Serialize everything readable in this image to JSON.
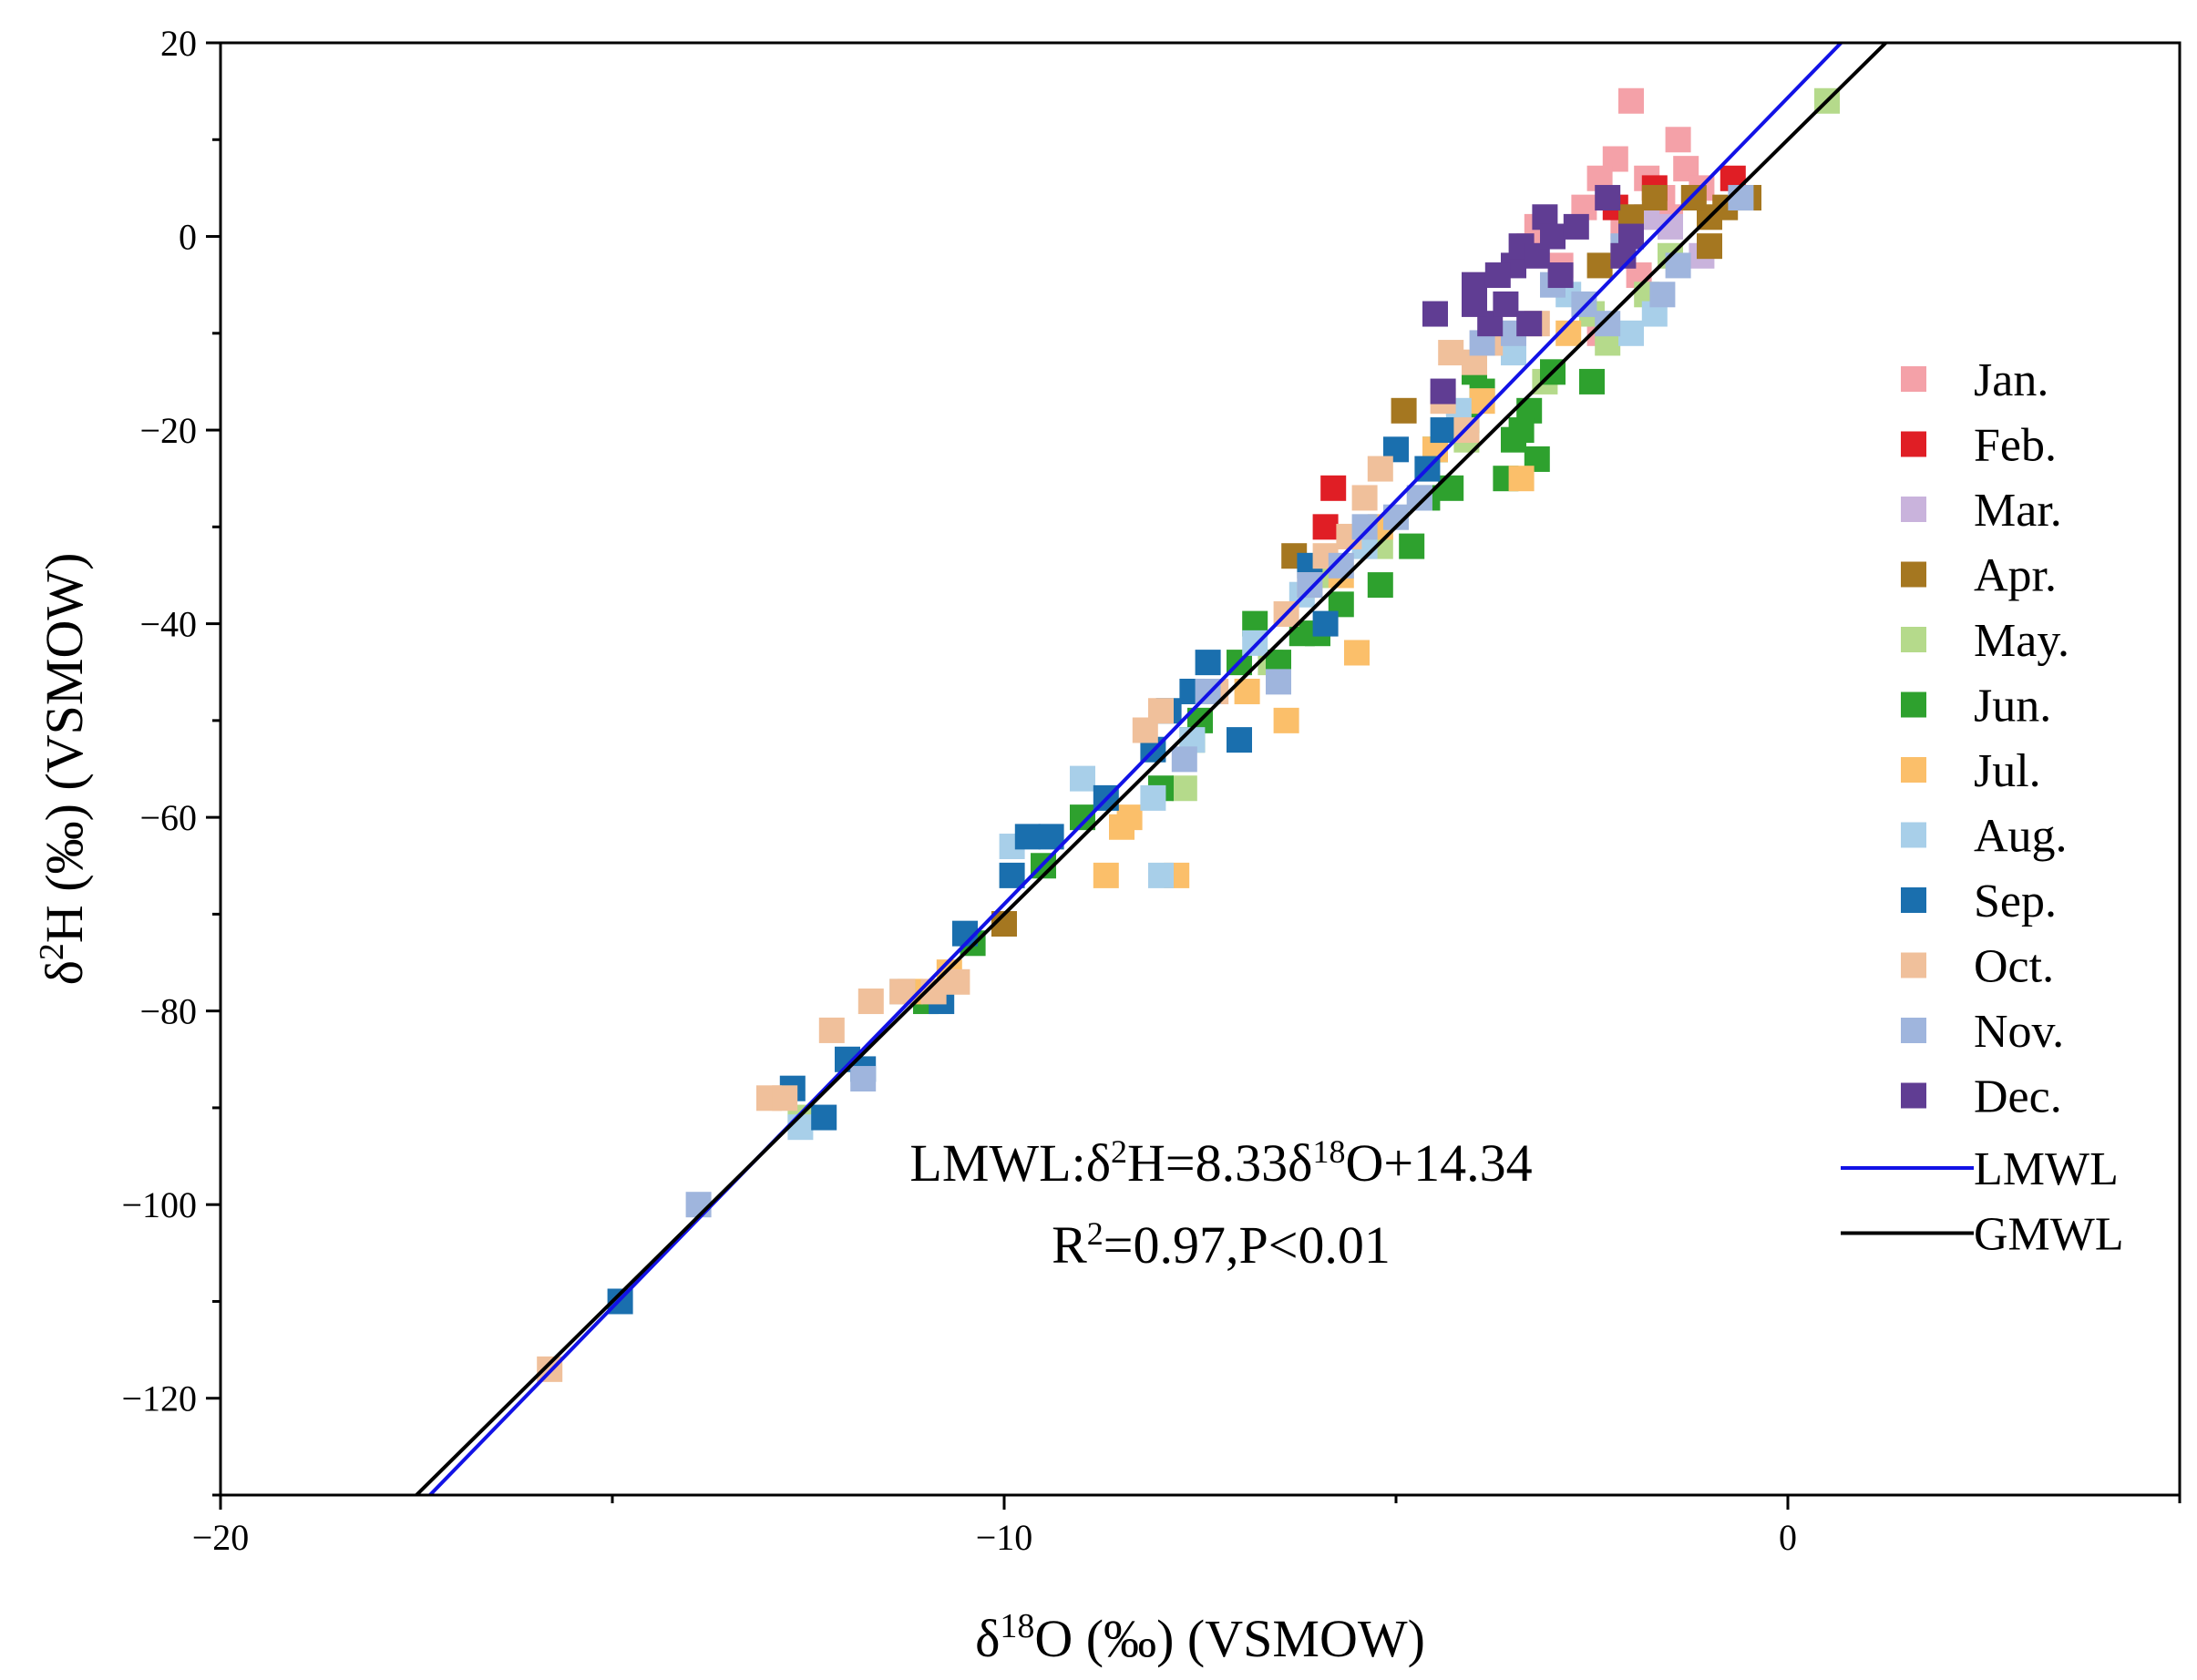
{
  "chart_data": {
    "type": "scatter",
    "title": "",
    "xlabel": {
      "prefix": "δ",
      "sup": "18",
      "rest": "O (‰) (VSMOW)"
    },
    "ylabel": {
      "prefix": "δ",
      "sup": "2",
      "rest": "H (‰) (VSMOW)"
    },
    "xlim": [
      -20,
      5
    ],
    "ylim": [
      -130,
      20
    ],
    "xticks": [
      -20,
      -10,
      0
    ],
    "xtick_labels": [
      "−20",
      "−10",
      "0"
    ],
    "yticks": [
      20,
      0,
      -20,
      -40,
      -60,
      -80,
      -100,
      -120
    ],
    "ytick_labels": [
      "20",
      "0",
      "−20",
      "−40",
      "−60",
      "−80",
      "−100",
      "−120"
    ],
    "grid": false,
    "legend_position": "right",
    "series": [
      {
        "name": "Jan.",
        "color": "#f4a1a8",
        "points": [
          [
            -2.0,
            14
          ],
          [
            -2.2,
            8
          ],
          [
            -1.4,
            10
          ],
          [
            -1.3,
            7
          ],
          [
            -1.8,
            6
          ],
          [
            -2.4,
            6
          ],
          [
            -1.6,
            4
          ],
          [
            -2.6,
            3
          ],
          [
            -1.1,
            5
          ],
          [
            -3.3,
            -1
          ],
          [
            -2.9,
            -3
          ],
          [
            -2.1,
            1
          ],
          [
            -1.5,
            2
          ],
          [
            -3.2,
            1
          ],
          [
            -2.4,
            -10
          ],
          [
            -1.9,
            -4
          ]
        ]
      },
      {
        "name": "Feb.",
        "color": "#e01e25",
        "points": [
          [
            -5.8,
            -26
          ],
          [
            -5.9,
            -30
          ],
          [
            -0.7,
            6
          ],
          [
            -2.2,
            3
          ],
          [
            -1.7,
            5
          ]
        ]
      },
      {
        "name": "Mar.",
        "color": "#c9b3dc",
        "points": [
          [
            -1.1,
            -2
          ],
          [
            -1.5,
            1
          ],
          [
            -2.0,
            0
          ],
          [
            -0.5,
            4
          ],
          [
            -3.6,
            -11
          ],
          [
            -1.8,
            2
          ]
        ]
      },
      {
        "name": "Apr.",
        "color": "#a57720",
        "points": [
          [
            -0.5,
            4
          ],
          [
            -0.8,
            3
          ],
          [
            -1.0,
            2
          ],
          [
            -1.2,
            4
          ],
          [
            -1.7,
            4
          ],
          [
            -1.0,
            -1
          ],
          [
            -2.0,
            2
          ],
          [
            -4.9,
            -18
          ],
          [
            -6.3,
            -33
          ],
          [
            -10.0,
            -71
          ],
          [
            -2.4,
            -3
          ]
        ]
      },
      {
        "name": "May.",
        "color": "#b5da8b",
        "points": [
          [
            0.5,
            14
          ],
          [
            -1.8,
            -6
          ],
          [
            -2.3,
            -11
          ],
          [
            -3.1,
            -15
          ],
          [
            -5.8,
            -35
          ],
          [
            -7.7,
            -57
          ],
          [
            -6.6,
            -44
          ],
          [
            -1.5,
            -2
          ],
          [
            -4.1,
            -21
          ],
          [
            -12.6,
            -91
          ],
          [
            -5.2,
            -32
          ],
          [
            -2.5,
            -8
          ]
        ]
      },
      {
        "name": "Jun.",
        "color": "#2ea12e",
        "points": [
          [
            -3.3,
            -18
          ],
          [
            -3.5,
            -21
          ],
          [
            -3.2,
            -23
          ],
          [
            -3.6,
            -25
          ],
          [
            -2.5,
            -15
          ],
          [
            -4.5,
            -22
          ],
          [
            -4.3,
            -26
          ],
          [
            -4.8,
            -32
          ],
          [
            -5.2,
            -36
          ],
          [
            -4.1,
            -19
          ],
          [
            -3.9,
            -16
          ],
          [
            -3.0,
            -14
          ],
          [
            -6.5,
            -44
          ],
          [
            -6.2,
            -41
          ],
          [
            -7.0,
            -44
          ],
          [
            -6.8,
            -40
          ],
          [
            -7.5,
            -50
          ],
          [
            -7.6,
            -52
          ],
          [
            -9.5,
            -65
          ],
          [
            -9.0,
            -60
          ],
          [
            -10.4,
            -73
          ],
          [
            -11.0,
            -79
          ],
          [
            -4.0,
            -14
          ],
          [
            -4.6,
            -27
          ],
          [
            -3.4,
            -20
          ],
          [
            -5.7,
            -38
          ],
          [
            -8.0,
            -57
          ],
          [
            -6.0,
            -41
          ]
        ]
      },
      {
        "name": "Jul.",
        "color": "#fbbf6a",
        "points": [
          [
            -7.8,
            -66
          ],
          [
            -8.7,
            -66
          ],
          [
            -8.5,
            -61
          ],
          [
            -8.4,
            -60
          ],
          [
            -6.4,
            -50
          ],
          [
            -5.5,
            -43
          ],
          [
            -5.7,
            -35
          ],
          [
            -4.5,
            -22
          ],
          [
            -3.4,
            -25
          ],
          [
            -3.9,
            -17
          ],
          [
            -11.2,
            -78
          ],
          [
            -6.9,
            -47
          ],
          [
            -5.2,
            -30
          ],
          [
            -2.8,
            -10
          ],
          [
            -10.7,
            -76
          ]
        ]
      },
      {
        "name": "Aug.",
        "color": "#a8cfe9",
        "points": [
          [
            -9.0,
            -56
          ],
          [
            -8.1,
            -58
          ],
          [
            -8.0,
            -66
          ],
          [
            -9.9,
            -63
          ],
          [
            -12.6,
            -92
          ],
          [
            -11.3,
            -78
          ],
          [
            -6.2,
            -37
          ],
          [
            -5.4,
            -32
          ],
          [
            -2.0,
            -10
          ],
          [
            -1.7,
            -8
          ],
          [
            -2.8,
            -6
          ],
          [
            -4.2,
            -18
          ],
          [
            -3.5,
            -12
          ],
          [
            -7.6,
            -52
          ],
          [
            -6.8,
            -42
          ],
          [
            -4.7,
            -27
          ]
        ]
      },
      {
        "name": "Sep.",
        "color": "#1a6fae",
        "points": [
          [
            -14.9,
            -110
          ],
          [
            -12.3,
            -91
          ],
          [
            -12.7,
            -88
          ],
          [
            -12.0,
            -85
          ],
          [
            -11.8,
            -86
          ],
          [
            -10.8,
            -79
          ],
          [
            -10.5,
            -72
          ],
          [
            -9.9,
            -66
          ],
          [
            -9.4,
            -62
          ],
          [
            -8.7,
            -58
          ],
          [
            -8.1,
            -53
          ],
          [
            -7.9,
            -49
          ],
          [
            -7.6,
            -47
          ],
          [
            -7.4,
            -44
          ],
          [
            -7.0,
            -52
          ],
          [
            -6.1,
            -34
          ],
          [
            -5.9,
            -40
          ],
          [
            -5.0,
            -22
          ],
          [
            -4.4,
            -20
          ],
          [
            -4.6,
            -24
          ],
          [
            -9.7,
            -62
          ]
        ]
      },
      {
        "name": "Oct.",
        "color": "#f0c09b",
        "points": [
          [
            -15.8,
            -117
          ],
          [
            -13.0,
            -89
          ],
          [
            -12.8,
            -89
          ],
          [
            -12.2,
            -82
          ],
          [
            -11.7,
            -79
          ],
          [
            -11.3,
            -78
          ],
          [
            -10.9,
            -78
          ],
          [
            -10.6,
            -77
          ],
          [
            -8.2,
            -51
          ],
          [
            -8.0,
            -49
          ],
          [
            -7.3,
            -47
          ],
          [
            -6.4,
            -39
          ],
          [
            -5.9,
            -33
          ],
          [
            -5.6,
            -31
          ],
          [
            -5.4,
            -27
          ],
          [
            -5.2,
            -24
          ],
          [
            -4.3,
            -12
          ],
          [
            -4.0,
            -13
          ],
          [
            -3.8,
            -11
          ],
          [
            -4.1,
            -20
          ],
          [
            -4.4,
            -17
          ],
          [
            -6.1,
            -36
          ],
          [
            -3.2,
            -9
          ]
        ]
      },
      {
        "name": "Nov.",
        "color": "#9fb5dd",
        "points": [
          [
            -13.9,
            -100
          ],
          [
            -11.8,
            -87
          ],
          [
            -7.7,
            -54
          ],
          [
            -7.4,
            -47
          ],
          [
            -6.5,
            -46
          ],
          [
            -6.1,
            -36
          ],
          [
            -5.7,
            -34
          ],
          [
            -5.4,
            -30
          ],
          [
            -5.0,
            -29
          ],
          [
            -4.7,
            -27
          ],
          [
            -3.9,
            -11
          ],
          [
            -3.0,
            -5
          ],
          [
            -2.3,
            -9
          ],
          [
            -1.6,
            -6
          ],
          [
            -2.1,
            -1
          ],
          [
            -1.4,
            -3
          ],
          [
            -3.5,
            -10
          ],
          [
            -2.6,
            -7
          ],
          [
            -0.6,
            4
          ]
        ]
      },
      {
        "name": "Dec.",
        "color": "#603d93",
        "points": [
          [
            -4.5,
            -8
          ],
          [
            -4.4,
            -16
          ],
          [
            -4.0,
            -5
          ],
          [
            -3.8,
            -9
          ],
          [
            -3.6,
            -7
          ],
          [
            -3.5,
            -3
          ],
          [
            -3.4,
            -1
          ],
          [
            -3.2,
            -2
          ],
          [
            -3.1,
            2
          ],
          [
            -3.0,
            0
          ],
          [
            -2.9,
            -4
          ],
          [
            -2.7,
            1
          ],
          [
            -2.3,
            4
          ],
          [
            -2.0,
            0
          ],
          [
            -2.1,
            -2
          ],
          [
            -4.0,
            -7
          ],
          [
            -3.3,
            -9
          ],
          [
            -3.7,
            -4
          ]
        ]
      }
    ],
    "lines": [
      {
        "name": "LMWL",
        "color": "#1212e6",
        "slope": 8.33,
        "intercept": 14.34
      },
      {
        "name": "GMWL",
        "color": "#000000",
        "slope": 8.0,
        "intercept": 10.0
      }
    ],
    "annotation": {
      "line1_parts": [
        "LMWL:δ",
        "2",
        "H=8.33δ",
        "18",
        "O+14.34"
      ],
      "line2_parts": [
        "R",
        "2",
        "=0.97,P<0.01"
      ]
    }
  }
}
